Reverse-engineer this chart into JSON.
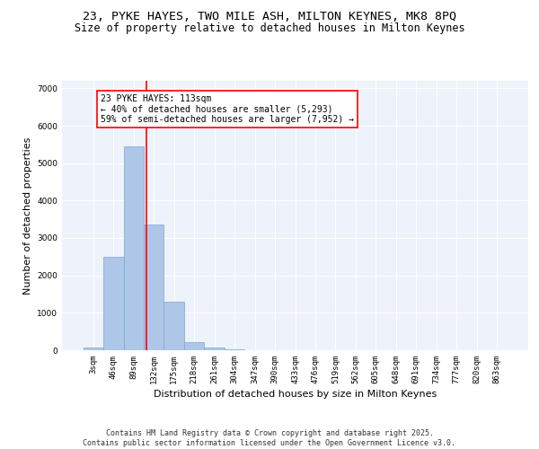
{
  "title_line1": "23, PYKE HAYES, TWO MILE ASH, MILTON KEYNES, MK8 8PQ",
  "title_line2": "Size of property relative to detached houses in Milton Keynes",
  "xlabel": "Distribution of detached houses by size in Milton Keynes",
  "ylabel": "Number of detached properties",
  "categories": [
    "3sqm",
    "46sqm",
    "89sqm",
    "132sqm",
    "175sqm",
    "218sqm",
    "261sqm",
    "304sqm",
    "347sqm",
    "390sqm",
    "433sqm",
    "476sqm",
    "519sqm",
    "562sqm",
    "605sqm",
    "648sqm",
    "691sqm",
    "734sqm",
    "777sqm",
    "820sqm",
    "863sqm"
  ],
  "values": [
    70,
    2500,
    5450,
    3350,
    1300,
    220,
    80,
    30,
    10,
    3,
    2,
    1,
    0,
    0,
    0,
    0,
    0,
    0,
    0,
    0,
    0
  ],
  "bar_color": "#aec6e8",
  "bar_edge_color": "#7ba7d4",
  "vline_x": 2.65,
  "vline_color": "red",
  "annotation_text": "23 PYKE HAYES: 113sqm\n← 40% of detached houses are smaller (5,293)\n59% of semi-detached houses are larger (7,952) →",
  "annotation_box_color": "red",
  "ylim": [
    0,
    7200
  ],
  "yticks": [
    0,
    1000,
    2000,
    3000,
    4000,
    5000,
    6000,
    7000
  ],
  "background_color": "#eef2fa",
  "grid_color": "#ffffff",
  "footer_line1": "Contains HM Land Registry data © Crown copyright and database right 2025.",
  "footer_line2": "Contains public sector information licensed under the Open Government Licence v3.0.",
  "title_fontsize": 9.5,
  "subtitle_fontsize": 8.5,
  "axis_label_fontsize": 8,
  "tick_fontsize": 6.5,
  "annotation_fontsize": 7,
  "footer_fontsize": 6
}
